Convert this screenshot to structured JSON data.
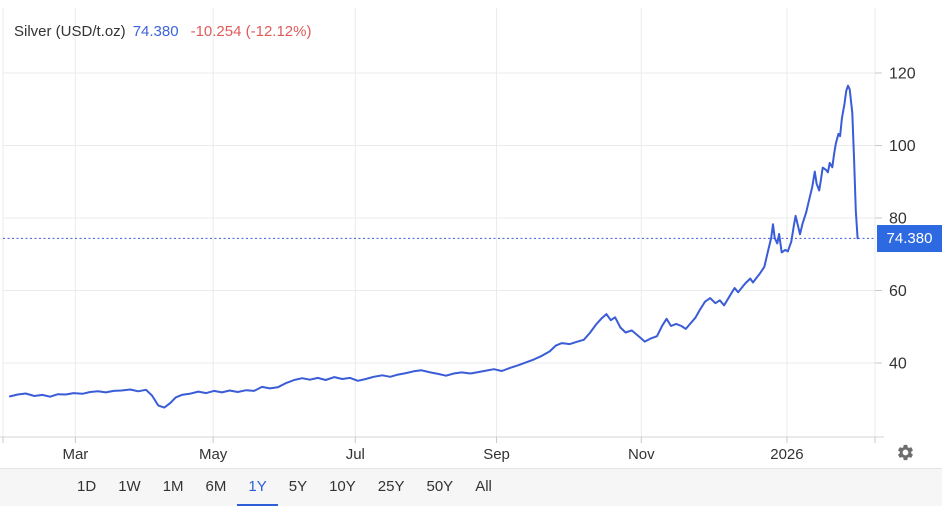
{
  "header": {
    "title": "Silver (USD/t.oz)",
    "value": "74.380",
    "change": "-10.254 (-12.12%)"
  },
  "badge": {
    "label": "74.380"
  },
  "toolbar": {
    "ranges": [
      "1D",
      "1W",
      "1M",
      "6M",
      "1Y",
      "5Y",
      "10Y",
      "25Y",
      "50Y",
      "All"
    ],
    "selected": "1Y"
  },
  "icons": {
    "settings": "gear-icon"
  },
  "colors": {
    "line_blue": "#3a5cd6",
    "value_blue": "#3e63dc",
    "change_red": "#e05b5b",
    "badge_bg": "#2d69e1",
    "grid": "#ebebeb",
    "axis_line": "#d6d6d6",
    "tick": "#c9c9c9",
    "label_text": "#333333",
    "toolbar_bg": "#f6f6f6",
    "selected_range_blue": "#2e5fd9",
    "gear_gray": "#6e6e6e"
  },
  "chart_data": {
    "type": "line",
    "title": "Silver (USD/t.oz)",
    "xlabel": "",
    "ylabel": "USD/t.oz",
    "current_value": 74.38,
    "change": -10.254,
    "change_pct": "-12.12%",
    "range_shown": "1Y",
    "grid": true,
    "legend_position": "none",
    "y_ticks": [
      120,
      100,
      80,
      60,
      40
    ],
    "ylim": [
      20,
      138
    ],
    "x_ticks": [
      {
        "label": "Mar",
        "f": 0.083
      },
      {
        "label": "May",
        "f": 0.241
      },
      {
        "label": "Jul",
        "f": 0.404
      },
      {
        "label": "Sep",
        "f": 0.566
      },
      {
        "label": "Nov",
        "f": 0.732
      },
      {
        "label": "2026",
        "f": 0.899
      }
    ],
    "series": [
      {
        "name": "Silver",
        "points": [
          [
            0.008,
            30.8
          ],
          [
            0.017,
            31.3
          ],
          [
            0.026,
            31.6
          ],
          [
            0.036,
            30.9
          ],
          [
            0.045,
            31.2
          ],
          [
            0.054,
            30.7
          ],
          [
            0.063,
            31.4
          ],
          [
            0.072,
            31.3
          ],
          [
            0.081,
            31.7
          ],
          [
            0.091,
            31.5
          ],
          [
            0.1,
            32.0
          ],
          [
            0.109,
            32.2
          ],
          [
            0.118,
            31.9
          ],
          [
            0.127,
            32.3
          ],
          [
            0.136,
            32.4
          ],
          [
            0.146,
            32.7
          ],
          [
            0.155,
            32.2
          ],
          [
            0.164,
            32.6
          ],
          [
            0.171,
            31.0
          ],
          [
            0.178,
            28.3
          ],
          [
            0.185,
            27.7
          ],
          [
            0.192,
            29.0
          ],
          [
            0.198,
            30.5
          ],
          [
            0.205,
            31.2
          ],
          [
            0.214,
            31.5
          ],
          [
            0.224,
            32.1
          ],
          [
            0.233,
            31.7
          ],
          [
            0.242,
            32.3
          ],
          [
            0.251,
            31.9
          ],
          [
            0.26,
            32.4
          ],
          [
            0.269,
            32.0
          ],
          [
            0.279,
            32.5
          ],
          [
            0.288,
            32.3
          ],
          [
            0.297,
            33.4
          ],
          [
            0.306,
            33.0
          ],
          [
            0.315,
            33.3
          ],
          [
            0.325,
            34.5
          ],
          [
            0.334,
            35.3
          ],
          [
            0.343,
            35.8
          ],
          [
            0.352,
            35.4
          ],
          [
            0.361,
            35.9
          ],
          [
            0.37,
            35.3
          ],
          [
            0.38,
            36.1
          ],
          [
            0.389,
            35.6
          ],
          [
            0.398,
            35.9
          ],
          [
            0.407,
            35.1
          ],
          [
            0.416,
            35.6
          ],
          [
            0.425,
            36.2
          ],
          [
            0.435,
            36.6
          ],
          [
            0.444,
            36.2
          ],
          [
            0.453,
            36.8
          ],
          [
            0.462,
            37.2
          ],
          [
            0.471,
            37.7
          ],
          [
            0.48,
            38.0
          ],
          [
            0.49,
            37.4
          ],
          [
            0.499,
            37.0
          ],
          [
            0.508,
            36.5
          ],
          [
            0.517,
            37.1
          ],
          [
            0.526,
            37.4
          ],
          [
            0.536,
            37.1
          ],
          [
            0.545,
            37.5
          ],
          [
            0.554,
            37.9
          ],
          [
            0.563,
            38.3
          ],
          [
            0.572,
            37.8
          ],
          [
            0.581,
            38.6
          ],
          [
            0.591,
            39.4
          ],
          [
            0.6,
            40.2
          ],
          [
            0.609,
            41.0
          ],
          [
            0.618,
            42.0
          ],
          [
            0.627,
            43.2
          ],
          [
            0.634,
            44.8
          ],
          [
            0.641,
            45.5
          ],
          [
            0.65,
            45.2
          ],
          [
            0.659,
            45.9
          ],
          [
            0.666,
            46.4
          ],
          [
            0.673,
            48.3
          ],
          [
            0.68,
            50.6
          ],
          [
            0.686,
            52.2
          ],
          [
            0.692,
            53.5
          ],
          [
            0.697,
            51.8
          ],
          [
            0.702,
            52.6
          ],
          [
            0.708,
            49.8
          ],
          [
            0.714,
            48.4
          ],
          [
            0.721,
            49.0
          ],
          [
            0.728,
            47.6
          ],
          [
            0.736,
            45.9
          ],
          [
            0.743,
            46.8
          ],
          [
            0.75,
            47.4
          ],
          [
            0.756,
            50.3
          ],
          [
            0.761,
            52.2
          ],
          [
            0.766,
            50.2
          ],
          [
            0.772,
            50.8
          ],
          [
            0.778,
            50.2
          ],
          [
            0.783,
            49.4
          ],
          [
            0.788,
            50.8
          ],
          [
            0.794,
            52.5
          ],
          [
            0.799,
            54.6
          ],
          [
            0.805,
            56.9
          ],
          [
            0.811,
            57.9
          ],
          [
            0.817,
            56.5
          ],
          [
            0.822,
            57.3
          ],
          [
            0.827,
            55.9
          ],
          [
            0.834,
            58.7
          ],
          [
            0.839,
            60.7
          ],
          [
            0.843,
            59.5
          ],
          [
            0.851,
            61.9
          ],
          [
            0.857,
            63.3
          ],
          [
            0.86,
            62.2
          ],
          [
            0.868,
            64.7
          ],
          [
            0.873,
            66.5
          ],
          [
            0.877,
            70.5
          ],
          [
            0.881,
            74.5
          ],
          [
            0.883,
            78.3
          ],
          [
            0.885,
            74.5
          ],
          [
            0.888,
            73.0
          ],
          [
            0.89,
            75.6
          ],
          [
            0.893,
            70.5
          ],
          [
            0.897,
            71.2
          ],
          [
            0.9,
            70.8
          ],
          [
            0.904,
            73.5
          ],
          [
            0.907,
            78.0
          ],
          [
            0.909,
            80.6
          ],
          [
            0.912,
            77.5
          ],
          [
            0.914,
            75.5
          ],
          [
            0.917,
            78.5
          ],
          [
            0.921,
            81.5
          ],
          [
            0.924,
            84.5
          ],
          [
            0.928,
            88.5
          ],
          [
            0.931,
            92.8
          ],
          [
            0.933,
            89.5
          ],
          [
            0.936,
            87.6
          ],
          [
            0.938,
            90.5
          ],
          [
            0.94,
            93.9
          ],
          [
            0.944,
            93.2
          ],
          [
            0.946,
            92.6
          ],
          [
            0.948,
            95.2
          ],
          [
            0.951,
            94.0
          ],
          [
            0.953,
            97.5
          ],
          [
            0.955,
            100.5
          ],
          [
            0.958,
            103.2
          ],
          [
            0.96,
            102.6
          ],
          [
            0.962,
            107.5
          ],
          [
            0.965,
            111.5
          ],
          [
            0.967,
            115.0
          ],
          [
            0.969,
            116.5
          ],
          [
            0.971,
            115.5
          ],
          [
            0.974,
            109.0
          ],
          [
            0.976,
            96.0
          ],
          [
            0.978,
            82.0
          ],
          [
            0.98,
            74.4
          ]
        ]
      }
    ]
  }
}
